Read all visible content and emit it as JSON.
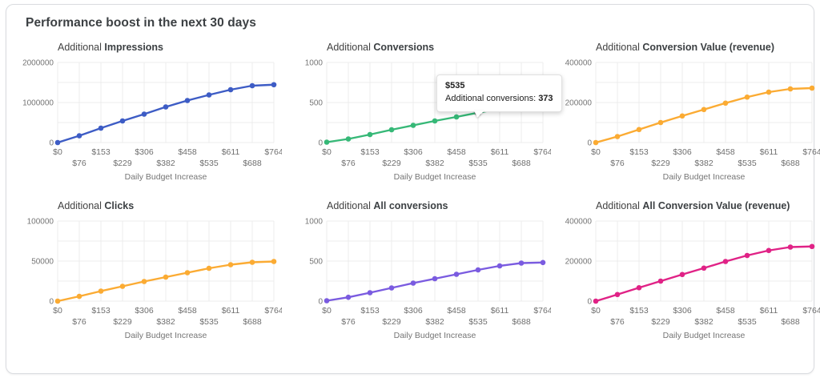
{
  "page": {
    "title": "Performance boost in the next 30 days"
  },
  "x_axis": {
    "label": "Daily Budget Increase",
    "ticks": [
      "$0",
      "$76",
      "$153",
      "$229",
      "$306",
      "$382",
      "$458",
      "$535",
      "$611",
      "$688",
      "$764"
    ]
  },
  "chart_data": [
    {
      "type": "line",
      "key": "impressions",
      "title_prefix": "Additional ",
      "title": "Impressions",
      "color": "#3d5cc5",
      "ylim": [
        0,
        2000000
      ],
      "yticks": [
        0,
        1000000,
        2000000
      ],
      "xlabel": "Daily Budget Increase",
      "categories": [
        "$0",
        "$76",
        "$153",
        "$229",
        "$306",
        "$382",
        "$458",
        "$535",
        "$611",
        "$688",
        "$764"
      ],
      "values": [
        0,
        170000,
        360000,
        540000,
        710000,
        890000,
        1050000,
        1190000,
        1320000,
        1420000,
        1445000
      ]
    },
    {
      "type": "line",
      "key": "conversions",
      "title_prefix": "Additional ",
      "title": "Conversions",
      "color": "#36b877",
      "ylim": [
        0,
        1000
      ],
      "yticks": [
        0,
        500,
        1000
      ],
      "xlabel": "Daily Budget Increase",
      "categories": [
        "$0",
        "$76",
        "$153",
        "$229",
        "$306",
        "$382",
        "$458",
        "$535",
        "$611",
        "$688",
        "$764"
      ],
      "values": [
        5,
        45,
        100,
        160,
        215,
        270,
        320,
        373,
        420,
        455,
        462
      ],
      "highlight": {
        "index": 7,
        "color": "#6d6d6d"
      },
      "tooltip": {
        "title": "$535",
        "label": "Additional conversions: ",
        "value": "373"
      }
    },
    {
      "type": "line",
      "key": "conversion-value",
      "title_prefix": "Additional ",
      "title": "Conversion Value (revenue)",
      "color": "#fbab33",
      "ylim": [
        0,
        400000
      ],
      "yticks": [
        0,
        200000,
        400000
      ],
      "xlabel": "Daily Budget Increase",
      "categories": [
        "$0",
        "$76",
        "$153",
        "$229",
        "$306",
        "$382",
        "$458",
        "$535",
        "$611",
        "$688",
        "$764"
      ],
      "values": [
        0,
        30000,
        65000,
        100000,
        133000,
        165000,
        197000,
        227000,
        252000,
        268000,
        272000
      ]
    },
    {
      "type": "line",
      "key": "clicks",
      "title_prefix": "Additional ",
      "title": "Clicks",
      "color": "#fbab33",
      "ylim": [
        0,
        100000
      ],
      "yticks": [
        0,
        50000,
        100000
      ],
      "xlabel": "Daily Budget Increase",
      "categories": [
        "$0",
        "$76",
        "$153",
        "$229",
        "$306",
        "$382",
        "$458",
        "$535",
        "$611",
        "$688",
        "$764"
      ],
      "values": [
        0,
        6000,
        12500,
        18500,
        24500,
        30000,
        35500,
        41000,
        45500,
        48500,
        49500
      ]
    },
    {
      "type": "line",
      "key": "all-conversions",
      "title_prefix": "Additional ",
      "title": "All conversions",
      "color": "#7a5be0",
      "ylim": [
        0,
        1000
      ],
      "yticks": [
        0,
        500,
        1000
      ],
      "xlabel": "Daily Budget Increase",
      "categories": [
        "$0",
        "$76",
        "$153",
        "$229",
        "$306",
        "$382",
        "$458",
        "$535",
        "$611",
        "$688",
        "$764"
      ],
      "values": [
        5,
        48,
        105,
        165,
        225,
        280,
        335,
        390,
        440,
        475,
        482
      ]
    },
    {
      "type": "line",
      "key": "all-conversion-value",
      "title_prefix": "Additional ",
      "title": "All Conversion Value (revenue)",
      "color": "#e02286",
      "ylim": [
        0,
        400000
      ],
      "yticks": [
        0,
        200000,
        400000
      ],
      "xlabel": "Daily Budget Increase",
      "categories": [
        "$0",
        "$76",
        "$153",
        "$229",
        "$306",
        "$382",
        "$458",
        "$535",
        "$611",
        "$688",
        "$764"
      ],
      "values": [
        0,
        33000,
        67000,
        100000,
        133000,
        165000,
        198000,
        228000,
        253000,
        270000,
        273000
      ]
    }
  ]
}
